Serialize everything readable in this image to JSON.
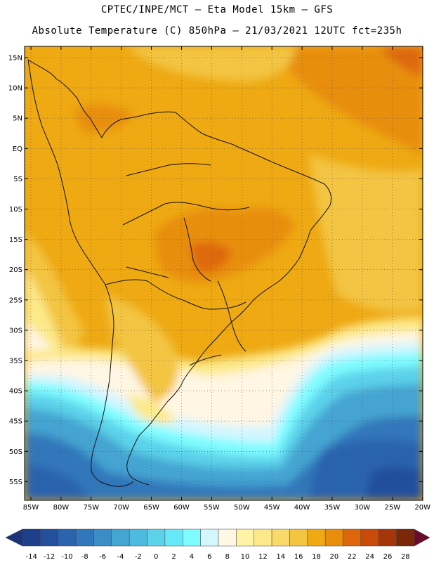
{
  "title": {
    "line1": "CPTEC/INPE/MCT –  Eta Model 15km – GFS",
    "line2": "Absolute Temperature (C) 850hPa – 21/03/2021 12UTC fct=235h"
  },
  "lat_labels": [
    "15N",
    "10N",
    "5N",
    "EQ",
    "5S",
    "10S",
    "15S",
    "20S",
    "25S",
    "30S",
    "35S",
    "40S",
    "45S",
    "50S",
    "55S"
  ],
  "lon_labels": [
    "85W",
    "80W",
    "75W",
    "70W",
    "65W",
    "60W",
    "55W",
    "50W",
    "45W",
    "40W",
    "35W",
    "30W",
    "25W",
    "20W"
  ],
  "colorbar": {
    "labels": [
      "-14",
      "-12",
      "-10",
      "-8",
      "-6",
      "-4",
      "-2",
      "0",
      "2",
      "4",
      "6",
      "8",
      "10",
      "12",
      "14",
      "16",
      "18",
      "20",
      "22",
      "24",
      "26",
      "28"
    ],
    "colors": [
      "#1e3f8c",
      "#234f9c",
      "#2b63ad",
      "#3177ba",
      "#3a8dc6",
      "#44a4d2",
      "#4fbadf",
      "#5bd2ea",
      "#66e8f6",
      "#7ffcff",
      "#d4f6ff",
      "#fff6e3",
      "#fff3a8",
      "#fce98a",
      "#f9d96a",
      "#f3c543",
      "#eea913",
      "#e88e0f",
      "#de670d",
      "#c84b0a",
      "#a63609",
      "#7c2708"
    ],
    "under_color": "#1c3378",
    "over_color": "#6a0d2c"
  }
}
